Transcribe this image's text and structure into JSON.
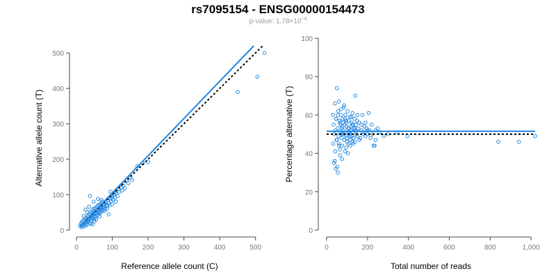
{
  "header": {
    "title": "rs7095154 - ENSG00000154473",
    "pvalue_prefix": "p-value: 1.78×10",
    "pvalue_exponent": "−4"
  },
  "colors": {
    "points": "#2a8be0",
    "fit_line": "#1f86e6",
    "reference_line": "#000000"
  },
  "chart_data": [
    {
      "type": "scatter",
      "xlabel": "Reference allele count (C)",
      "ylabel": "Alternative allele count (T)",
      "xlim": [
        0,
        520
      ],
      "ylim": [
        0,
        520
      ],
      "xticks": [
        0,
        100,
        200,
        300,
        400,
        500
      ],
      "yticks": [
        0,
        100,
        200,
        300,
        400,
        500
      ],
      "x_tick_labels": [
        "0",
        "100",
        "200",
        "300",
        "400",
        "500"
      ],
      "y_tick_labels": [
        "0",
        "100",
        "200",
        "300",
        "400",
        "500"
      ],
      "fit_line": {
        "x": [
          10,
          495
        ],
        "y": [
          10,
          520
        ]
      },
      "reference_line": {
        "x": [
          10,
          520
        ],
        "y": [
          10,
          520
        ]
      },
      "points": [
        [
          10,
          12
        ],
        [
          12,
          18
        ],
        [
          14,
          8
        ],
        [
          15,
          22
        ],
        [
          16,
          14
        ],
        [
          18,
          25
        ],
        [
          19,
          10
        ],
        [
          20,
          28
        ],
        [
          22,
          18
        ],
        [
          23,
          15
        ],
        [
          24,
          32
        ],
        [
          25,
          20
        ],
        [
          26,
          12
        ],
        [
          27,
          26
        ],
        [
          28,
          35
        ],
        [
          29,
          22
        ],
        [
          30,
          30
        ],
        [
          31,
          16
        ],
        [
          32,
          40
        ],
        [
          33,
          28
        ],
        [
          34,
          24
        ],
        [
          35,
          45
        ],
        [
          36,
          30
        ],
        [
          37,
          20
        ],
        [
          38,
          52
        ],
        [
          39,
          34
        ],
        [
          40,
          38
        ],
        [
          41,
          26
        ],
        [
          42,
          48
        ],
        [
          43,
          32
        ],
        [
          44,
          42
        ],
        [
          45,
          55
        ],
        [
          46,
          36
        ],
        [
          47,
          60
        ],
        [
          48,
          44
        ],
        [
          49,
          30
        ],
        [
          50,
          50
        ],
        [
          51,
          40
        ],
        [
          52,
          62
        ],
        [
          53,
          46
        ],
        [
          54,
          36
        ],
        [
          55,
          58
        ],
        [
          56,
          48
        ],
        [
          57,
          66
        ],
        [
          58,
          42
        ],
        [
          59,
          54
        ],
        [
          60,
          70
        ],
        [
          61,
          50
        ],
        [
          62,
          45
        ],
        [
          63,
          60
        ],
        [
          64,
          72
        ],
        [
          65,
          56
        ],
        [
          66,
          48
        ],
        [
          67,
          64
        ],
        [
          68,
          76
        ],
        [
          69,
          58
        ],
        [
          70,
          52
        ],
        [
          71,
          68
        ],
        [
          72,
          80
        ],
        [
          73,
          62
        ],
        [
          74,
          56
        ],
        [
          75,
          70
        ],
        [
          76,
          66
        ],
        [
          78,
          74
        ],
        [
          80,
          60
        ],
        [
          82,
          78
        ],
        [
          84,
          72
        ],
        [
          86,
          68
        ],
        [
          88,
          84
        ],
        [
          90,
          76
        ],
        [
          92,
          70
        ],
        [
          94,
          88
        ],
        [
          96,
          82
        ],
        [
          98,
          90
        ],
        [
          100,
          94
        ],
        [
          102,
          86
        ],
        [
          104,
          98
        ],
        [
          106,
          100
        ],
        [
          108,
          92
        ],
        [
          110,
          104
        ],
        [
          112,
          110
        ],
        [
          115,
          96
        ],
        [
          118,
          116
        ],
        [
          120,
          108
        ],
        [
          125,
          120
        ],
        [
          128,
          112
        ],
        [
          130,
          126
        ],
        [
          135,
          118
        ],
        [
          140,
          140
        ],
        [
          145,
          132
        ],
        [
          150,
          148
        ],
        [
          155,
          142
        ],
        [
          38,
          96
        ],
        [
          48,
          80
        ],
        [
          60,
          88
        ],
        [
          78,
          54
        ],
        [
          90,
          44
        ],
        [
          95,
          108
        ],
        [
          20,
          40
        ],
        [
          25,
          58
        ],
        [
          30,
          50
        ],
        [
          35,
          66
        ],
        [
          40,
          18
        ],
        [
          45,
          16
        ],
        [
          50,
          24
        ],
        [
          55,
          30
        ],
        [
          65,
          38
        ],
        [
          70,
          85
        ],
        [
          85,
          60
        ],
        [
          100,
          72
        ],
        [
          110,
          80
        ],
        [
          170,
          180
        ],
        [
          185,
          188
        ],
        [
          200,
          192
        ],
        [
          450,
          390
        ],
        [
          505,
          433
        ],
        [
          525,
          500
        ]
      ]
    },
    {
      "type": "scatter",
      "xlabel": "Total number of reads",
      "ylabel": "Percentage alternative (T)",
      "xlim": [
        0,
        1020
      ],
      "ylim": [
        0,
        100
      ],
      "xticks": [
        0,
        200,
        400,
        600,
        800,
        1000
      ],
      "yticks": [
        0,
        20,
        40,
        60,
        80,
        100
      ],
      "x_tick_labels": [
        "0",
        "200",
        "400",
        "600",
        "800",
        "1,000"
      ],
      "y_tick_labels": [
        "0",
        "20",
        "40",
        "60",
        "80",
        "100"
      ],
      "fit_line": {
        "x": [
          0,
          1020
        ],
        "y": [
          51.5,
          51.5
        ]
      },
      "reference_line": {
        "x": [
          0,
          1020
        ],
        "y": [
          50,
          50
        ]
      },
      "points": [
        [
          30,
          60
        ],
        [
          32,
          45
        ],
        [
          34,
          55
        ],
        [
          36,
          35
        ],
        [
          38,
          50
        ],
        [
          40,
          66
        ],
        [
          42,
          41
        ],
        [
          44,
          52
        ],
        [
          46,
          58
        ],
        [
          48,
          47
        ],
        [
          50,
          74
        ],
        [
          52,
          33
        ],
        [
          54,
          53
        ],
        [
          56,
          62
        ],
        [
          58,
          49
        ],
        [
          60,
          45
        ],
        [
          62,
          57
        ],
        [
          64,
          51
        ],
        [
          66,
          39
        ],
        [
          68,
          55
        ],
        [
          70,
          60
        ],
        [
          72,
          48
        ],
        [
          74,
          53
        ],
        [
          76,
          44
        ],
        [
          78,
          58
        ],
        [
          80,
          50
        ],
        [
          82,
          52
        ],
        [
          84,
          64
        ],
        [
          86,
          47
        ],
        [
          88,
          55
        ],
        [
          90,
          41
        ],
        [
          92,
          60
        ],
        [
          94,
          49
        ],
        [
          96,
          54
        ],
        [
          98,
          56
        ],
        [
          100,
          48
        ],
        [
          102,
          62
        ],
        [
          104,
          51
        ],
        [
          106,
          45
        ],
        [
          108,
          57
        ],
        [
          110,
          53
        ],
        [
          112,
          50
        ],
        [
          114,
          59
        ],
        [
          116,
          47
        ],
        [
          118,
          54
        ],
        [
          120,
          52
        ],
        [
          122,
          56
        ],
        [
          124,
          49
        ],
        [
          126,
          61
        ],
        [
          128,
          51
        ],
        [
          130,
          55
        ],
        [
          132,
          48
        ],
        [
          134,
          53
        ],
        [
          136,
          58
        ],
        [
          138,
          46
        ],
        [
          140,
          70
        ],
        [
          142,
          52
        ],
        [
          144,
          55
        ],
        [
          146,
          50
        ],
        [
          148,
          57
        ],
        [
          150,
          49
        ],
        [
          155,
          53
        ],
        [
          160,
          56
        ],
        [
          165,
          48
        ],
        [
          170,
          52
        ],
        [
          175,
          60
        ],
        [
          180,
          51
        ],
        [
          185,
          54
        ],
        [
          190,
          49
        ],
        [
          195,
          53
        ],
        [
          200,
          50
        ],
        [
          205,
          61
        ],
        [
          210,
          52
        ],
        [
          215,
          48
        ],
        [
          220,
          55
        ],
        [
          225,
          50
        ],
        [
          230,
          44
        ],
        [
          235,
          44
        ],
        [
          240,
          52
        ],
        [
          250,
          53
        ],
        [
          260,
          51
        ],
        [
          280,
          49
        ],
        [
          300,
          50
        ],
        [
          40,
          36
        ],
        [
          45,
          32
        ],
        [
          55,
          30
        ],
        [
          65,
          42
        ],
        [
          75,
          37
        ],
        [
          85,
          65
        ],
        [
          95,
          43
        ],
        [
          105,
          40
        ],
        [
          115,
          44
        ],
        [
          125,
          46
        ],
        [
          60,
          67
        ],
        [
          70,
          63
        ],
        [
          45,
          58
        ],
        [
          55,
          60
        ],
        [
          65,
          56
        ],
        [
          75,
          54
        ],
        [
          85,
          50
        ],
        [
          95,
          57
        ],
        [
          105,
          53
        ],
        [
          115,
          49
        ],
        [
          125,
          55
        ],
        [
          50,
          47
        ],
        [
          60,
          44
        ],
        [
          70,
          50
        ],
        [
          80,
          56
        ],
        [
          90,
          58
        ],
        [
          100,
          46
        ],
        [
          110,
          51
        ],
        [
          120,
          59
        ],
        [
          130,
          45
        ],
        [
          140,
          53
        ],
        [
          150,
          60
        ],
        [
          160,
          47
        ],
        [
          170,
          55
        ],
        [
          180,
          50
        ],
        [
          190,
          56
        ],
        [
          200,
          52
        ],
        [
          240,
          47
        ],
        [
          345,
          51
        ],
        [
          395,
          49
        ],
        [
          840,
          46
        ],
        [
          940,
          46
        ],
        [
          1020,
          49
        ]
      ]
    }
  ]
}
